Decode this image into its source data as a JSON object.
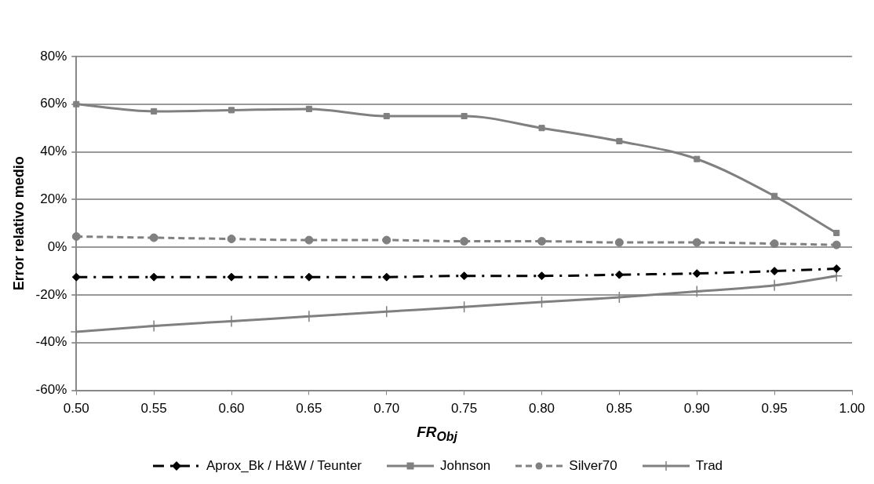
{
  "chart_data": {
    "type": "line",
    "xlabel": "FR$_{Obj}$",
    "ylabel": "Error relativo medio",
    "x": [
      0.5,
      0.55,
      0.6,
      0.65,
      0.7,
      0.75,
      0.8,
      0.85,
      0.9,
      0.95,
      0.99
    ],
    "series": [
      {
        "name": "Aprox_Bk / H&W / Teunter",
        "color": "#000000",
        "marker": "diamond",
        "line_style": "dashdot",
        "values": [
          -12.5,
          -12.5,
          -12.5,
          -12.5,
          -12.5,
          -12,
          -12,
          -11.5,
          -11,
          -10,
          -9
        ]
      },
      {
        "name": "Johnson",
        "color": "#808080",
        "marker": "square",
        "line_style": "solid",
        "values": [
          60,
          57,
          57.5,
          58,
          55,
          55,
          50,
          44.5,
          37,
          21.5,
          6
        ]
      },
      {
        "name": "Silver70",
        "color": "#808080",
        "marker": "circle",
        "line_style": "dashed",
        "values": [
          4.5,
          4,
          3.5,
          3,
          3,
          2.5,
          2.5,
          2,
          2,
          1.5,
          1
        ]
      },
      {
        "name": "Trad",
        "color": "#808080",
        "marker": "cross",
        "line_style": "solid",
        "values": [
          -35.5,
          -33,
          -31,
          -29,
          -27,
          -25,
          -23,
          -21,
          -18.5,
          -16,
          -12
        ]
      }
    ],
    "xlim": [
      0.5,
      1.0
    ],
    "xticks": [
      {
        "value": 0.5,
        "label": "0.50"
      },
      {
        "value": 0.55,
        "label": "0.55"
      },
      {
        "value": 0.6,
        "label": "0.60"
      },
      {
        "value": 0.65,
        "label": "0.65"
      },
      {
        "value": 0.7,
        "label": "0.70"
      },
      {
        "value": 0.75,
        "label": "0.75"
      },
      {
        "value": 0.8,
        "label": "0.80"
      },
      {
        "value": 0.85,
        "label": "0.85"
      },
      {
        "value": 0.9,
        "label": "0.90"
      },
      {
        "value": 0.95,
        "label": "0.95"
      },
      {
        "value": 1.0,
        "label": "1.00"
      }
    ],
    "ylim": [
      -60,
      80
    ],
    "yticks": [
      {
        "value": -60,
        "label": "-60%"
      },
      {
        "value": -40,
        "label": "-40%"
      },
      {
        "value": -20,
        "label": "-20%"
      },
      {
        "value": 0,
        "label": "0%"
      },
      {
        "value": 20,
        "label": "20%"
      },
      {
        "value": 40,
        "label": "40%"
      },
      {
        "value": 60,
        "label": "60%"
      },
      {
        "value": 80,
        "label": "80%"
      }
    ],
    "grid": "y",
    "legend": "bottom"
  }
}
